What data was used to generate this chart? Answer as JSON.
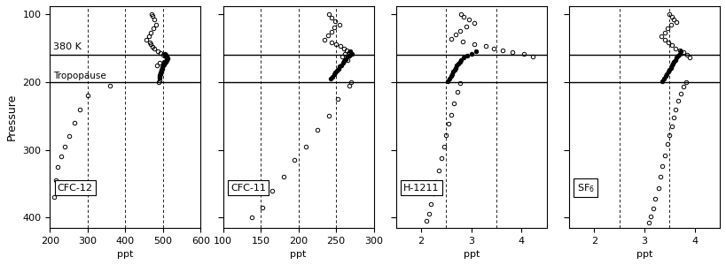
{
  "panels": [
    {
      "label": "CFC-12",
      "xlabel": "ppt",
      "xlim": [
        200,
        600
      ],
      "xticks": [
        200,
        300,
        400,
        500,
        600
      ],
      "xdashes": [
        300,
        400,
        500
      ],
      "open_x": [
        470,
        472,
        476,
        481,
        475,
        468,
        462,
        455,
        465,
        468,
        472,
        477,
        485,
        493,
        500,
        508,
        512,
        510,
        502,
        492,
        483
      ],
      "open_y": [
        100,
        103,
        108,
        115,
        121,
        127,
        132,
        137,
        141,
        144,
        148,
        151,
        154,
        157,
        160,
        162,
        165,
        168,
        170,
        172,
        175
      ],
      "fill_x": [
        505,
        508,
        510,
        512,
        510,
        508,
        505,
        503,
        501,
        499,
        497,
        496,
        495,
        494,
        493,
        492,
        491,
        490
      ],
      "fill_y": [
        158,
        160,
        163,
        165,
        168,
        170,
        172,
        174,
        176,
        178,
        180,
        182,
        184,
        186,
        188,
        190,
        192,
        194
      ],
      "trop_x": [
        490,
        488,
        360,
        300,
        280,
        265,
        250,
        240,
        230,
        220,
        215,
        210
      ],
      "trop_y": [
        198,
        200,
        205,
        220,
        240,
        260,
        280,
        295,
        310,
        325,
        345,
        370
      ]
    },
    {
      "label": "CFC-11",
      "xlabel": "ppt",
      "xlim": [
        100,
        300
      ],
      "xticks": [
        100,
        150,
        200,
        250,
        300
      ],
      "xdashes": [
        150,
        200,
        250
      ],
      "open_x": [
        240,
        244,
        249,
        255,
        248,
        244,
        239,
        234,
        244,
        250,
        256,
        260,
        264,
        268,
        262,
        258,
        265
      ],
      "open_y": [
        100,
        105,
        110,
        115,
        120,
        126,
        131,
        137,
        141,
        144,
        147,
        150,
        153,
        156,
        158,
        162,
        167
      ],
      "fill_x": [
        269,
        271,
        268,
        265,
        263,
        261,
        259,
        257,
        255,
        253,
        251,
        249,
        247,
        245,
        243
      ],
      "fill_y": [
        155,
        158,
        161,
        163,
        166,
        169,
        172,
        175,
        177,
        180,
        183,
        186,
        189,
        192,
        195
      ],
      "trop_x": [
        270,
        268,
        252,
        240,
        225,
        210,
        195,
        180,
        165,
        152,
        138
      ],
      "trop_y": [
        200,
        205,
        225,
        250,
        270,
        295,
        315,
        340,
        360,
        385,
        400
      ]
    },
    {
      "label": "H-1211",
      "xlabel": "ppt",
      "xlim": [
        1.5,
        4.5
      ],
      "xticks": [
        2.0,
        3.0,
        4.0
      ],
      "xdashes": [
        2.5,
        3.5
      ],
      "open_x": [
        2.8,
        2.85,
        2.95,
        3.05,
        2.9,
        2.78,
        2.68,
        2.6,
        2.82,
        3.05,
        3.28,
        3.45,
        3.62,
        3.82,
        4.05,
        4.22
      ],
      "open_y": [
        100,
        104,
        108,
        113,
        118,
        124,
        130,
        136,
        140,
        144,
        147,
        150,
        153,
        156,
        159,
        163
      ],
      "fill_x": [
        3.1,
        3.0,
        2.92,
        2.85,
        2.8,
        2.77,
        2.74,
        2.71,
        2.69,
        2.67,
        2.64,
        2.62,
        2.59,
        2.56,
        2.53
      ],
      "fill_y": [
        155,
        158,
        161,
        164,
        167,
        170,
        173,
        176,
        179,
        182,
        185,
        188,
        191,
        195,
        199
      ],
      "trop_x": [
        2.78,
        2.72,
        2.65,
        2.6,
        2.55,
        2.5,
        2.45,
        2.4,
        2.35,
        2.3,
        2.25,
        2.2,
        2.15,
        2.1
      ],
      "trop_y": [
        202,
        215,
        232,
        248,
        262,
        278,
        295,
        312,
        330,
        348,
        365,
        380,
        395,
        405
      ]
    },
    {
      "label": "SF$_6$",
      "xlabel": "ppt",
      "xlim": [
        1.5,
        4.5
      ],
      "xticks": [
        2.0,
        3.0,
        4.0
      ],
      "xdashes": [
        2.5,
        3.5
      ],
      "open_x": [
        3.5,
        3.54,
        3.59,
        3.64,
        3.52,
        3.46,
        3.4,
        3.34,
        3.4,
        3.48,
        3.55,
        3.62,
        3.7,
        3.78,
        3.85,
        3.9
      ],
      "open_y": [
        100,
        104,
        108,
        112,
        116,
        121,
        127,
        133,
        138,
        142,
        146,
        150,
        153,
        156,
        160,
        164
      ],
      "fill_x": [
        3.72,
        3.7,
        3.67,
        3.64,
        3.62,
        3.59,
        3.57,
        3.54,
        3.52,
        3.49,
        3.47,
        3.44,
        3.42,
        3.39,
        3.36
      ],
      "fill_y": [
        155,
        158,
        161,
        164,
        167,
        170,
        173,
        176,
        179,
        182,
        185,
        188,
        191,
        195,
        199
      ],
      "trop_x": [
        3.82,
        3.78,
        3.72,
        3.67,
        3.62,
        3.58,
        3.54,
        3.49,
        3.45,
        3.4,
        3.36,
        3.32,
        3.28,
        3.22,
        3.17,
        3.12,
        3.08
      ],
      "trop_y": [
        200,
        207,
        217,
        228,
        240,
        252,
        265,
        278,
        292,
        308,
        324,
        340,
        356,
        372,
        387,
        398,
        408
      ]
    }
  ],
  "ylim": [
    415,
    88
  ],
  "yticks": [
    100,
    200,
    300,
    400
  ],
  "pressure_label": "Pressure",
  "line_380K_pressure": 160,
  "line_tropo_pressure": 200,
  "label_380K": "380 K",
  "label_tropo": "Tropopause"
}
